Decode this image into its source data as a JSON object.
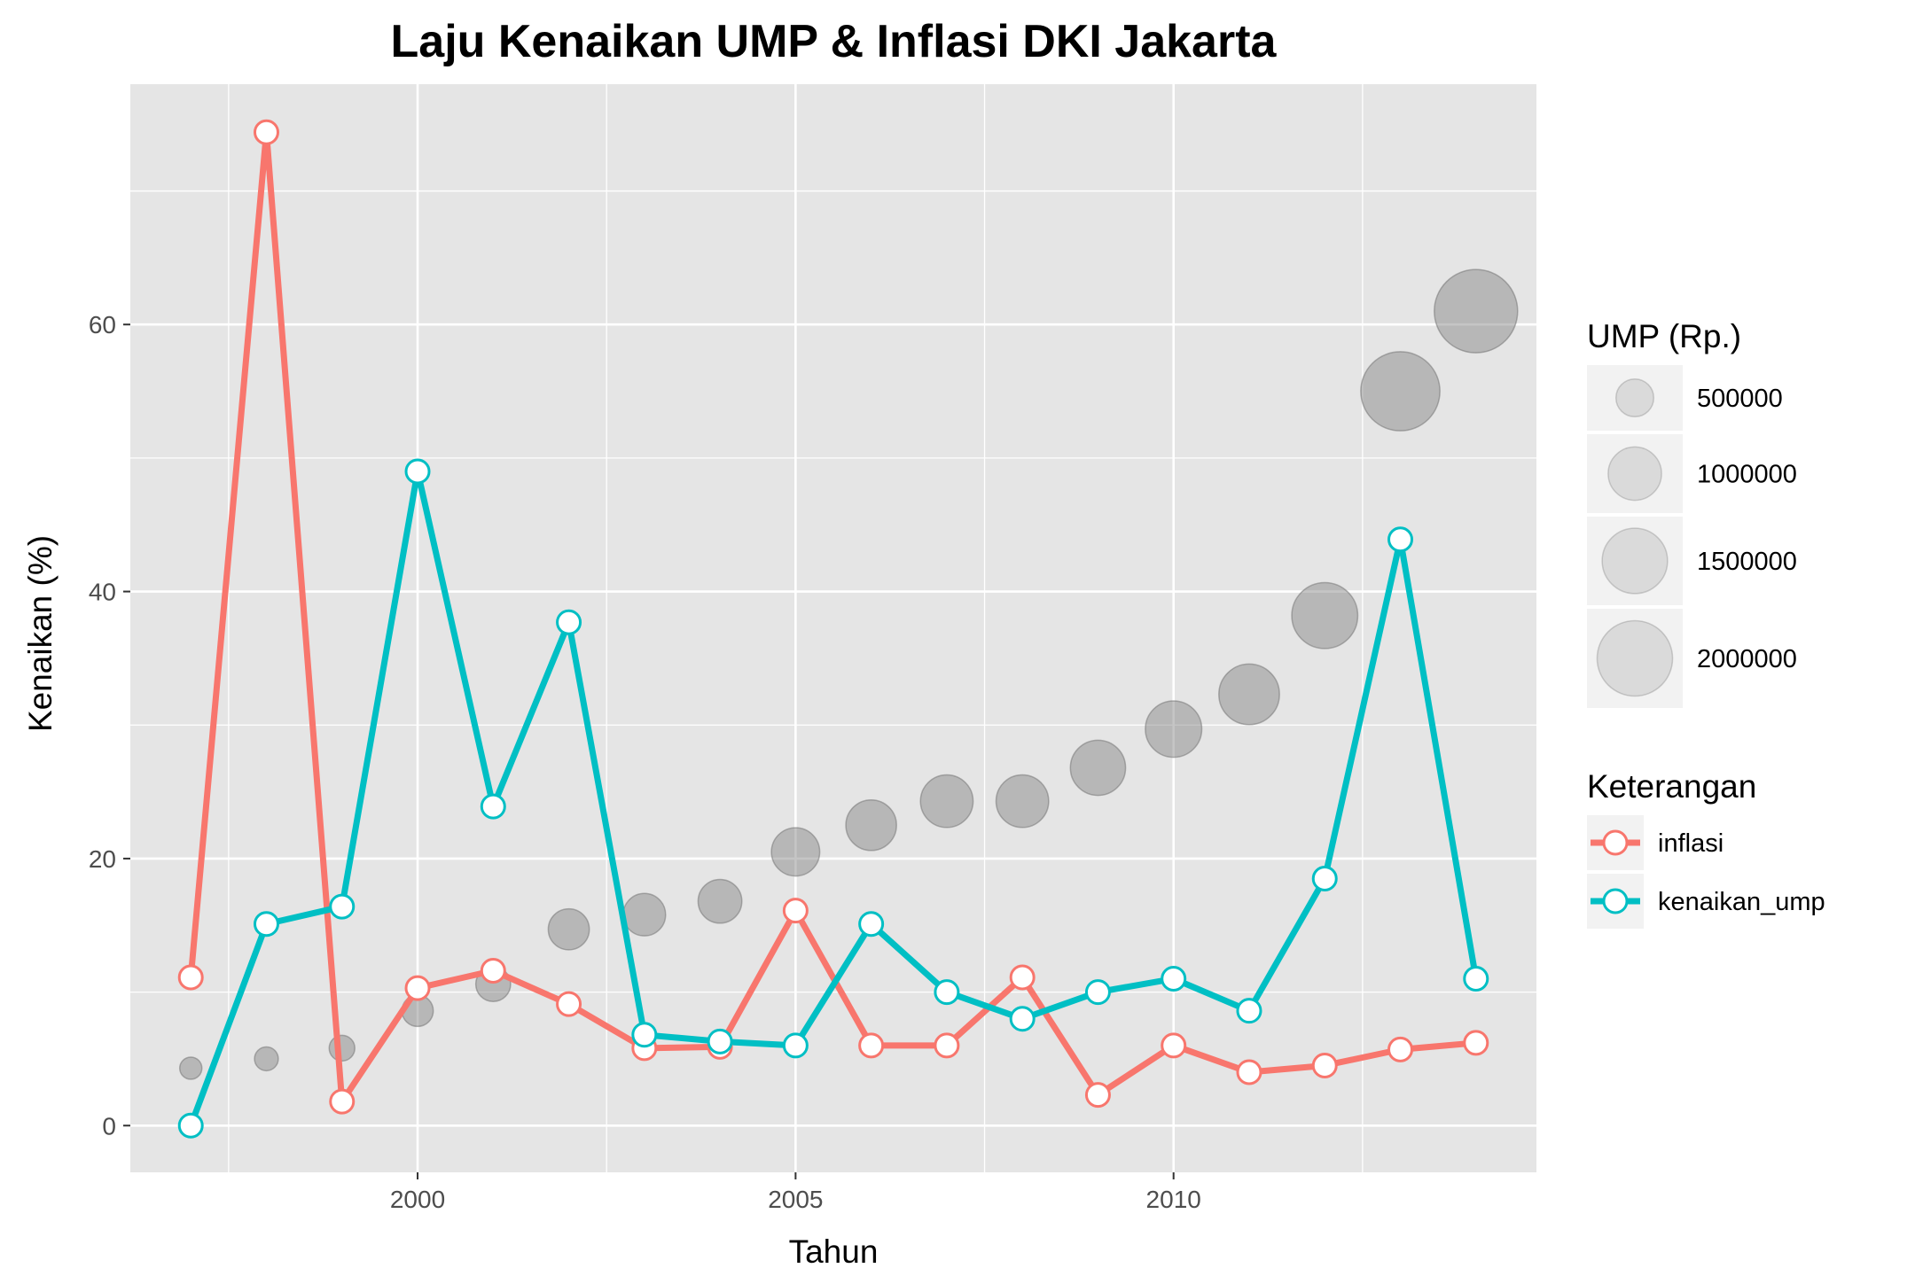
{
  "chart_data": {
    "type": "line",
    "title": "Laju Kenaikan UMP & Inflasi DKI Jakarta",
    "xlabel": "Tahun",
    "ylabel": "Kenaikan (%)",
    "xlim": [
      1996.2,
      2014.8
    ],
    "ylim": [
      -3.5,
      78
    ],
    "x_ticks": [
      2000,
      2005,
      2010
    ],
    "y_ticks": [
      0,
      20,
      40,
      60
    ],
    "grid": true,
    "x": [
      1997,
      1998,
      1999,
      2000,
      2001,
      2002,
      2003,
      2004,
      2005,
      2006,
      2007,
      2008,
      2009,
      2010,
      2011,
      2012,
      2013,
      2014
    ],
    "series": [
      {
        "name": "inflasi",
        "color": "#F8766D",
        "values": [
          11.1,
          74.4,
          1.8,
          10.3,
          11.6,
          9.1,
          5.8,
          5.9,
          16.1,
          6.0,
          6.0,
          11.1,
          2.3,
          6.0,
          4.0,
          4.5,
          5.7,
          6.2
        ]
      },
      {
        "name": "kenaikan_ump",
        "color": "#00BFC4",
        "values": [
          0.0,
          15.1,
          16.4,
          49.0,
          23.9,
          37.7,
          6.8,
          6.3,
          6.0,
          15.1,
          10.0,
          8.0,
          10.0,
          11.0,
          8.6,
          18.5,
          43.9,
          11.0
        ]
      }
    ],
    "bubbles": {
      "name": "UMP (Rp.)",
      "values": [
        172500,
        198500,
        231000,
        344257,
        426250,
        591266,
        631554,
        671550,
        819100,
        900560,
        972604,
        972604,
        1069865,
        1118009,
        1290000,
        1529150,
        2200000,
        2441000
      ],
      "y": [
        4.3,
        5.0,
        5.8,
        8.6,
        10.6,
        14.7,
        15.8,
        16.8,
        20.5,
        22.5,
        24.3,
        24.3,
        26.8,
        29.7,
        32.3,
        38.2,
        55.0,
        61.0
      ]
    },
    "legends": [
      {
        "title": "UMP (Rp.)",
        "entries": [
          "500000",
          "1000000",
          "1500000",
          "2000000"
        ],
        "values": [
          500000,
          1000000,
          1500000,
          2000000
        ]
      },
      {
        "title": "Keterangan",
        "entries": [
          "inflasi",
          "kenaikan_ump"
        ]
      }
    ],
    "legend_position": "right",
    "colors": {
      "panel": "#E5E5E5",
      "grid": "#FFFFFF",
      "bubble": "#7F7F7F",
      "legend_key": "#F2F2F2"
    }
  }
}
